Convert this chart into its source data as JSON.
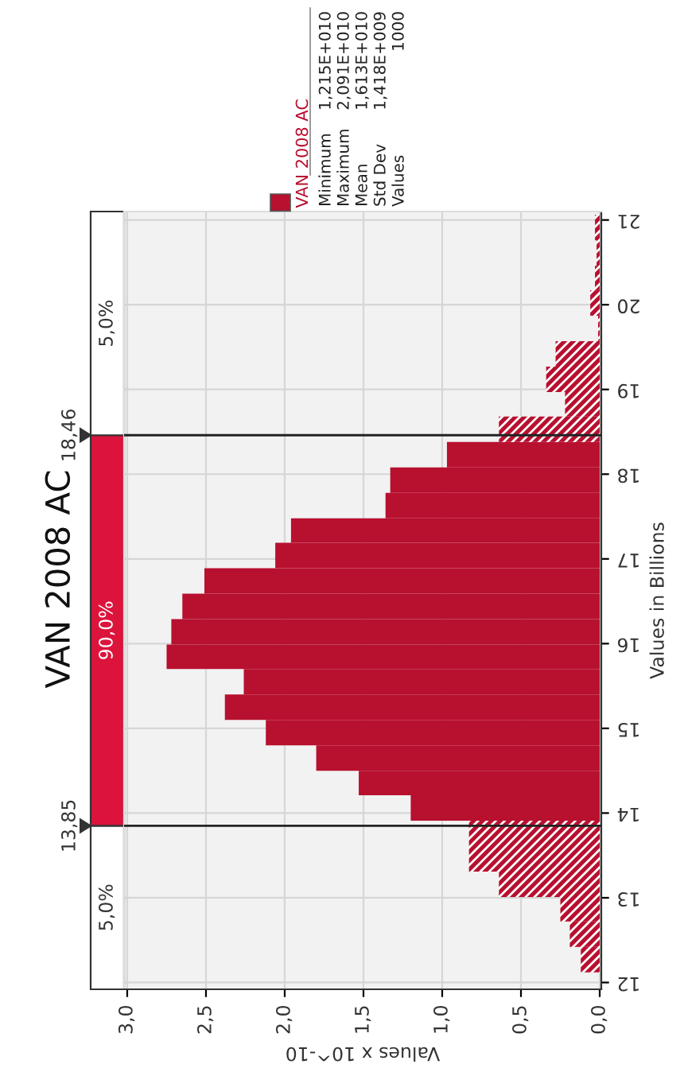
{
  "chart_data": {
    "type": "histogram",
    "title": "VAN 2008 AC",
    "orientation": "horizontal",
    "xlabel": "Values x 10^-10",
    "ylabel": "Values in Billions",
    "bins": [
      12.12,
      12.42,
      12.72,
      13.01,
      13.31,
      13.61,
      13.91,
      14.21,
      14.5,
      14.8,
      15.1,
      15.4,
      15.7,
      15.99,
      16.29,
      16.59,
      16.89,
      17.19,
      17.48,
      17.78,
      18.08,
      18.38,
      18.68,
      18.97,
      19.27,
      19.57,
      19.87,
      20.17,
      20.46,
      20.76,
      21.06
    ],
    "series": [
      {
        "name": "VAN 2008 AC",
        "color": "#b8102f",
        "values": [
          0.12,
          0.19,
          0.25,
          0.64,
          0.83,
          0.83,
          1.2,
          1.53,
          1.8,
          2.12,
          2.38,
          2.26,
          2.75,
          2.72,
          2.65,
          2.51,
          2.06,
          1.96,
          1.36,
          1.33,
          0.97,
          0.64,
          0.22,
          0.34,
          0.28,
          0.01,
          0.06,
          0.03,
          0.02,
          0.03
        ]
      }
    ],
    "xlim": [
      3.02,
      -0.01
    ],
    "xticks": [
      {
        "value": 3.0,
        "label": "3,0"
      },
      {
        "value": 2.5,
        "label": "2,5"
      },
      {
        "value": 2.0,
        "label": "2,0"
      },
      {
        "value": 1.5,
        "label": "1,5"
      },
      {
        "value": 1.0,
        "label": "1,0"
      },
      {
        "value": 0.5,
        "label": "0,5"
      },
      {
        "value": 0.0,
        "label": "0,0"
      }
    ],
    "ylim": [
      11.92,
      21.1
    ],
    "yticks": [
      12,
      13,
      14,
      15,
      16,
      17,
      18,
      19,
      20,
      21
    ],
    "ref_lines": [
      {
        "axis": "y",
        "value": 13.85,
        "label": "13,85"
      },
      {
        "axis": "y",
        "value": 18.46,
        "label": "18,46"
      }
    ],
    "annotations": [
      "5,0%",
      "90,0%",
      "5,0%",
      "Minimum 1,215E+010",
      "Maximum 2,091E+010",
      "Mean 1,613E+010",
      "Std Dev 1,418E+009",
      "Values 1000"
    ],
    "grid": true,
    "legend": "top left"
  }
}
